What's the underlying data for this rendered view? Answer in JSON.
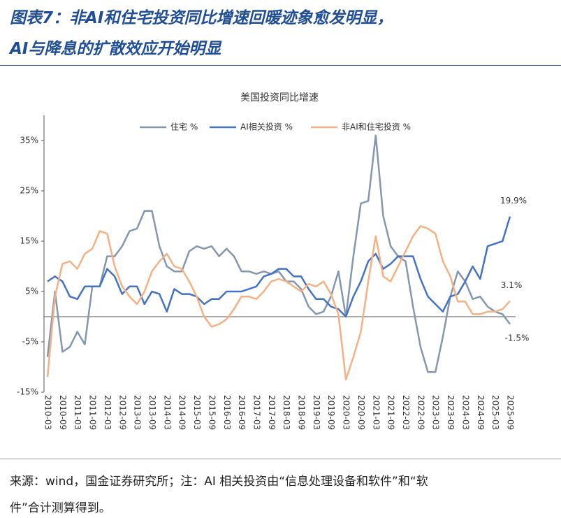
{
  "header": {
    "title_lines": [
      "图表7：非AI和住宅投资同比增速回暖迹象愈发明显，",
      "AI与降息的扩散效应开始明显"
    ]
  },
  "chart_data": {
    "type": "line",
    "title": "美国投资同比增速",
    "categories": [
      "2010-03",
      null,
      "2010-09",
      null,
      "2011-03",
      null,
      "2011-09",
      null,
      "2012-03",
      null,
      "2012-09",
      null,
      "2013-03",
      null,
      "2013-09",
      null,
      "2014-03",
      null,
      "2014-09",
      null,
      "2015-03",
      null,
      "2015-09",
      null,
      "2016-03",
      null,
      "2016-09",
      null,
      "2017-03",
      null,
      "2017-09",
      null,
      "2018-03",
      null,
      "2018-09",
      null,
      "2019-03",
      null,
      "2019-09",
      null,
      "2020-03",
      null,
      "2020-09",
      null,
      "2021-03",
      null,
      "2021-09",
      null,
      "2022-03",
      null,
      "2022-09",
      null,
      "2023-03",
      null,
      "2023-09",
      null,
      "2024-03",
      null,
      "2024-09",
      null,
      "2025-03",
      null,
      "2025-09"
    ],
    "series": [
      {
        "name": "住宅 %",
        "color": "#8497b0",
        "values": [
          -8,
          5,
          -7,
          -6,
          -3,
          -5.5,
          6,
          6,
          12,
          12,
          14,
          17,
          17.5,
          21,
          21,
          14,
          10,
          9,
          9,
          13,
          14,
          13.5,
          14,
          12,
          13.5,
          12,
          9,
          9,
          8.5,
          9,
          8.5,
          9,
          7,
          7,
          5.5,
          2,
          0.5,
          1,
          4,
          9,
          0,
          12,
          22.5,
          23,
          36,
          20,
          14,
          12,
          11,
          2,
          -6,
          -11,
          -11,
          -4,
          4,
          9,
          7,
          3.5,
          4,
          2,
          1,
          0.5,
          -1.5
        ],
        "value_labels": [
          null,
          null,
          null,
          null,
          null,
          null,
          null,
          null,
          null,
          null,
          null,
          null,
          null,
          null,
          null,
          null,
          null,
          null,
          null,
          null,
          null,
          null,
          null,
          null,
          null,
          null,
          null,
          null,
          null,
          null,
          null,
          null,
          null,
          null,
          null,
          null,
          null,
          null,
          null,
          null,
          null,
          null,
          null,
          null,
          null,
          null,
          null,
          null,
          null,
          null,
          null,
          null,
          null,
          null,
          null,
          null,
          null,
          null,
          null,
          null,
          null,
          null,
          "-1.5%"
        ]
      },
      {
        "name": "AI相关投资 %",
        "color": "#4472c4",
        "values": [
          7,
          8,
          7,
          4,
          3.5,
          6,
          6,
          6,
          9.5,
          8,
          4.5,
          6,
          6,
          2.5,
          5,
          4.5,
          1,
          5.5,
          4.5,
          4.5,
          4,
          2.5,
          3.5,
          3.5,
          5,
          5,
          5,
          5.5,
          6,
          8,
          8.5,
          9.5,
          9.5,
          8,
          8,
          5.5,
          3.5,
          3.5,
          2,
          1.5,
          0,
          4,
          7,
          11,
          12.5,
          9.5,
          10.5,
          12,
          12,
          12,
          7.5,
          4,
          2.5,
          1,
          4,
          4.5,
          7,
          10,
          7.5,
          14,
          14.5,
          15,
          19.9
        ],
        "value_labels": [
          null,
          null,
          null,
          null,
          null,
          null,
          null,
          null,
          null,
          null,
          null,
          null,
          null,
          null,
          null,
          null,
          null,
          null,
          null,
          null,
          null,
          null,
          null,
          null,
          null,
          null,
          null,
          null,
          null,
          null,
          null,
          null,
          null,
          null,
          null,
          null,
          null,
          null,
          null,
          null,
          null,
          null,
          null,
          null,
          null,
          null,
          null,
          null,
          null,
          null,
          null,
          null,
          null,
          null,
          null,
          null,
          null,
          null,
          null,
          null,
          null,
          null,
          "19.9%"
        ]
      },
      {
        "name": "非AI和住宅投资 %",
        "color": "#f4b183",
        "values": [
          -12,
          4,
          10.5,
          11,
          9.5,
          12.5,
          13.5,
          17,
          16.5,
          10,
          6,
          4,
          2.5,
          5,
          9,
          11,
          12.5,
          10,
          9.5,
          7,
          4,
          0,
          -2,
          -1.5,
          -0.5,
          1.5,
          4,
          4,
          3.5,
          5,
          7,
          7.5,
          7,
          6,
          5,
          6.5,
          6,
          7,
          4.5,
          0.5,
          -12.5,
          -8,
          -3,
          7,
          16,
          8,
          7,
          10,
          13,
          16,
          18,
          17.5,
          16.5,
          11,
          8,
          3,
          3,
          0.5,
          0.5,
          1,
          1,
          1.5,
          3.1
        ],
        "value_labels": [
          null,
          null,
          null,
          null,
          null,
          null,
          null,
          null,
          null,
          null,
          null,
          null,
          null,
          null,
          null,
          null,
          null,
          null,
          null,
          null,
          null,
          null,
          null,
          null,
          null,
          null,
          null,
          null,
          null,
          null,
          null,
          null,
          null,
          null,
          null,
          null,
          null,
          null,
          null,
          null,
          null,
          null,
          null,
          null,
          null,
          null,
          null,
          null,
          null,
          null,
          null,
          null,
          null,
          null,
          null,
          null,
          null,
          null,
          null,
          null,
          null,
          null,
          "3.1%"
        ]
      }
    ],
    "ylim": [
      -15,
      40
    ],
    "yticks": [
      {
        "value": -15,
        "label": "-15%"
      },
      {
        "value": -5,
        "label": "-5%"
      },
      {
        "value": 5,
        "label": "5%"
      },
      {
        "value": 15,
        "label": "15%"
      },
      {
        "value": 25,
        "label": "25%"
      },
      {
        "value": 35,
        "label": "35%"
      }
    ],
    "grid": false,
    "legend": "top"
  },
  "source": {
    "lines": [
      "来源：wind，国金证券研究所；注：AI 相关投资由“信息处理设备和软件”和“软",
      "件”合计测算得到。"
    ]
  }
}
